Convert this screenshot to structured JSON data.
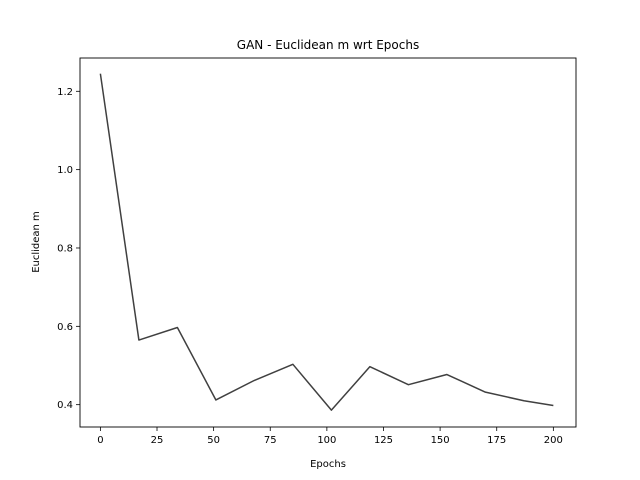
{
  "chart_data": {
    "type": "line",
    "title": "GAN - Euclidean m wrt Epochs",
    "xlabel": "Epochs",
    "ylabel": "Euclidean m",
    "xlim": [
      -9,
      210
    ],
    "ylim": [
      0.343,
      1.285
    ],
    "xticks": [
      0,
      25,
      50,
      75,
      100,
      125,
      150,
      175,
      200
    ],
    "yticks": [
      0.4,
      0.6,
      0.8,
      1.0,
      1.2
    ],
    "ytick_labels": [
      "0.4",
      "0.6",
      "0.8",
      "1.0",
      "1.2"
    ],
    "grid": false,
    "series": [
      {
        "color": "#404040",
        "x": [
          0,
          17,
          34,
          51,
          68,
          85,
          102,
          119,
          136,
          153,
          170,
          187,
          200
        ],
        "y": [
          1.245,
          0.565,
          0.597,
          0.412,
          0.462,
          0.503,
          0.386,
          0.497,
          0.451,
          0.477,
          0.432,
          0.41,
          0.398
        ]
      }
    ]
  }
}
